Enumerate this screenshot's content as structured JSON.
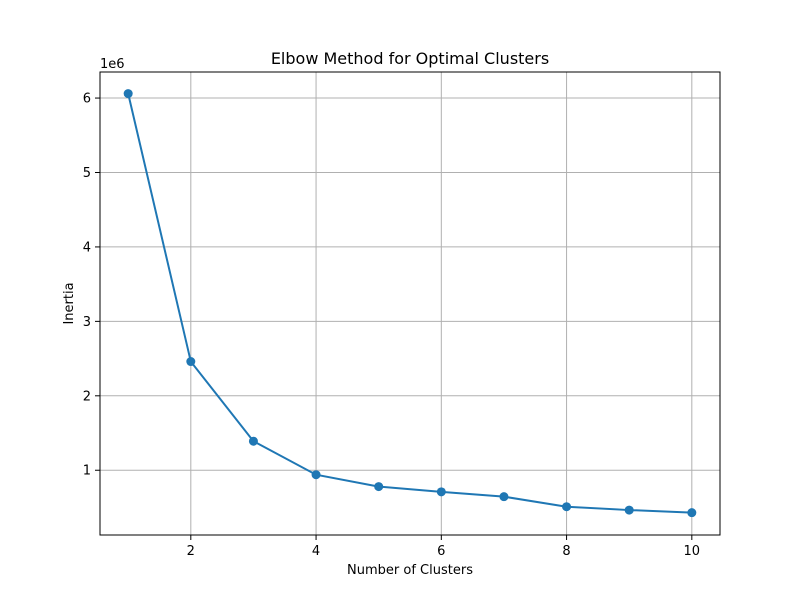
{
  "chart_data": {
    "type": "line",
    "title": "Elbow Method for Optimal Clusters",
    "xlabel": "Number of Clusters",
    "ylabel": "Inertia",
    "y_offset_label": "1e6",
    "xlim": [
      0.55,
      10.45
    ],
    "ylim": [
      0.13,
      6.35
    ],
    "x_ticks": [
      2,
      4,
      6,
      8,
      10
    ],
    "y_ticks": [
      1,
      2,
      3,
      4,
      5,
      6
    ],
    "grid": true,
    "series": [
      {
        "x": [
          1,
          2,
          3,
          4,
          5,
          6,
          7,
          8,
          9,
          10
        ],
        "values": [
          6.06,
          2.46,
          1.39,
          0.94,
          0.78,
          0.71,
          0.645,
          0.51,
          0.465,
          0.43
        ],
        "color": "#1f77b4",
        "marker": "circle"
      }
    ]
  }
}
